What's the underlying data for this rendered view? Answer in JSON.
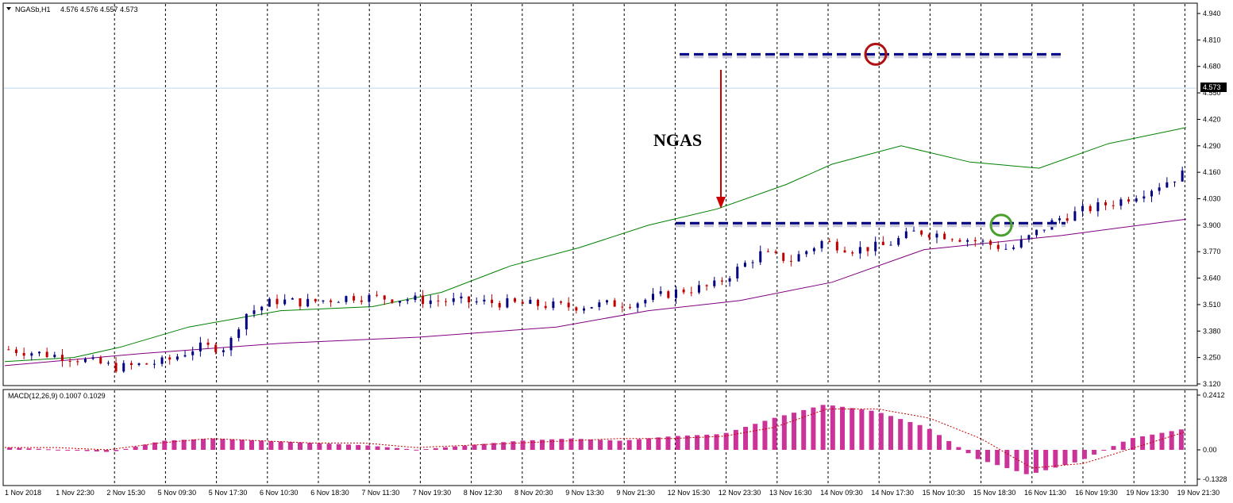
{
  "header": {
    "symbol_label": "NGASb,H1",
    "ohlc": "4.576 4.576 4.557 4.573"
  },
  "macd_header": {
    "label": "MACD(12,26,9) 0.1007 0.1029"
  },
  "price_badge": "4.573",
  "annotation_label": "NGAS",
  "colors": {
    "bull": "#000080",
    "bear": "#c00000",
    "ma_fast": "#008000",
    "ma_slow": "#800080",
    "macd_hist": "#cc3399",
    "signal": "#c00000",
    "level": "#000080",
    "circle_top": "#b01010",
    "circle_bottom": "#4aa02c"
  },
  "chart_data": [
    {
      "type": "candlestick",
      "title": "",
      "ylim": [
        3.12,
        4.94
      ],
      "y_ticks": [
        "4.940",
        "4.810",
        "4.680",
        "4.550",
        "4.420",
        "4.290",
        "4.160",
        "4.030",
        "3.900",
        "3.770",
        "3.640",
        "3.510",
        "3.380",
        "3.250",
        "3.120"
      ],
      "x_labels": [
        "1 Nov 2018",
        "1 Nov 22:30",
        "2 Nov 15:30",
        "5 Nov 09:30",
        "5 Nov 17:30",
        "6 Nov 10:30",
        "6 Nov 18:30",
        "7 Nov 11:30",
        "7 Nov 19:30",
        "8 Nov 12:30",
        "8 Nov 20:30",
        "9 Nov 13:30",
        "9 Nov 21:30",
        "12 Nov 15:30",
        "12 Nov 23:30",
        "13 Nov 16:30",
        "14 Nov 09:30",
        "14 Nov 17:30",
        "15 Nov 10:30",
        "15 Nov 18:30",
        "16 Nov 11:30",
        "16 Nov 19:30",
        "19 Nov 13:30",
        "19 Nov 21:30"
      ],
      "candle_count": 154,
      "price_path": [
        [
          0,
          3.29
        ],
        [
          8,
          3.25
        ],
        [
          14,
          3.2
        ],
        [
          20,
          3.23
        ],
        [
          24,
          3.3
        ],
        [
          28,
          3.3
        ],
        [
          30,
          3.46
        ],
        [
          34,
          3.53
        ],
        [
          38,
          3.52
        ],
        [
          44,
          3.55
        ],
        [
          54,
          3.53
        ],
        [
          62,
          3.52
        ],
        [
          72,
          3.5
        ],
        [
          80,
          3.52
        ],
        [
          86,
          3.58
        ],
        [
          90,
          3.6
        ],
        [
          96,
          3.76
        ],
        [
          100,
          3.73
        ],
        [
          104,
          3.82
        ],
        [
          108,
          3.78
        ],
        [
          112,
          3.8
        ],
        [
          116,
          3.87
        ],
        [
          120,
          3.85
        ],
        [
          124,
          3.82
        ],
        [
          128,
          3.78
        ],
        [
          134,
          3.93
        ],
        [
          138,
          3.98
        ],
        [
          142,
          4.02
        ],
        [
          146,
          4.08
        ],
        [
          150,
          4.15
        ]
      ],
      "series": [
        {
          "name": "",
          "kind": "ma",
          "points": [
            [
              0,
              3.23
            ],
            [
              15,
              3.25
            ],
            [
              25,
              3.3
            ],
            [
              40,
              3.4
            ],
            [
              60,
              3.48
            ],
            [
              80,
              3.5
            ],
            [
              95,
              3.57
            ],
            [
              110,
              3.7
            ],
            [
              125,
              3.79
            ],
            [
              140,
              3.9
            ],
            [
              155,
              3.98
            ],
            [
              170,
              4.1
            ],
            [
              180,
              4.2
            ],
            [
              195,
              4.29
            ],
            [
              210,
              4.21
            ],
            [
              225,
              4.18
            ],
            [
              240,
              4.3
            ],
            [
              257,
              4.38
            ]
          ]
        },
        {
          "name": "",
          "kind": "ma",
          "points": [
            [
              0,
              3.21
            ],
            [
              30,
              3.27
            ],
            [
              60,
              3.32
            ],
            [
              90,
              3.35
            ],
            [
              120,
              3.4
            ],
            [
              140,
              3.48
            ],
            [
              160,
              3.53
            ],
            [
              180,
              3.62
            ],
            [
              200,
              3.78
            ],
            [
              230,
              3.85
            ],
            [
              257,
              3.93
            ]
          ]
        }
      ],
      "levels": [
        {
          "label": "",
          "value": 4.74
        },
        {
          "label": "",
          "value": 3.91
        }
      ],
      "markers": [
        {
          "kind": "circle",
          "value": 4.74,
          "color": "red"
        },
        {
          "kind": "circle",
          "value": 3.9,
          "color": "green"
        }
      ],
      "current_price": 4.573
    },
    {
      "type": "bar",
      "title": "",
      "ylim": [
        -0.13,
        0.2412
      ],
      "y_ticks": [
        "0.2412",
        "0.00",
        "-0.1328"
      ],
      "values_sample": [
        0.01,
        0.0,
        -0.01,
        0.04,
        0.05,
        0.04,
        0.03,
        0.02,
        0.0,
        0.02,
        0.04,
        0.05,
        0.04,
        0.06,
        0.07,
        0.14,
        0.2,
        0.17,
        0.1,
        -0.04,
        -0.11,
        -0.05,
        0.05,
        0.09
      ],
      "signal_sample": [
        0.01,
        0.01,
        0.0,
        0.03,
        0.05,
        0.04,
        0.03,
        0.03,
        0.01,
        0.02,
        0.03,
        0.04,
        0.05,
        0.05,
        0.06,
        0.1,
        0.18,
        0.18,
        0.14,
        0.05,
        -0.08,
        -0.06,
        0.01,
        0.08
      ]
    }
  ]
}
